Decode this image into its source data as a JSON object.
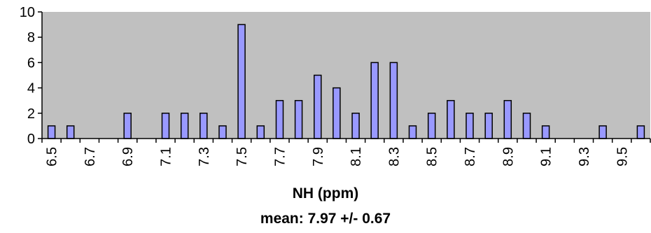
{
  "chart_data": {
    "type": "bar",
    "x": [
      6.5,
      6.6,
      6.7,
      6.8,
      6.9,
      7.0,
      7.1,
      7.2,
      7.3,
      7.4,
      7.5,
      7.6,
      7.7,
      7.8,
      7.9,
      8.0,
      8.1,
      8.2,
      8.3,
      8.4,
      8.5,
      8.6,
      8.7,
      8.8,
      8.9,
      9.0,
      9.1,
      9.2,
      9.3,
      9.4,
      9.5,
      9.6
    ],
    "values": [
      1,
      1,
      0,
      0,
      2,
      0,
      2,
      2,
      2,
      1,
      9,
      1,
      3,
      3,
      5,
      4,
      2,
      6,
      6,
      1,
      2,
      3,
      2,
      2,
      3,
      2,
      1,
      0,
      0,
      1,
      0,
      1
    ],
    "x_tick_labels": [
      "6.5",
      "6.7",
      "6.9",
      "7.1",
      "7.3",
      "7.5",
      "7.7",
      "7.9",
      "8.1",
      "8.3",
      "8.5",
      "8.7",
      "8.9",
      "9.1",
      "9.3",
      "9.5"
    ],
    "y_ticks": [
      "0",
      "2",
      "4",
      "6",
      "8",
      "10"
    ],
    "ylim": [
      0,
      10
    ],
    "xlabel": "NH (ppm)",
    "xlabel_sub": "mean: 7.97 +/- 0.67",
    "title": "",
    "ylabel": "",
    "grid": false,
    "colors": {
      "plot_background": "#c0c0c0",
      "bar_fill": "#9999ff",
      "bar_stroke": "#000000"
    }
  }
}
